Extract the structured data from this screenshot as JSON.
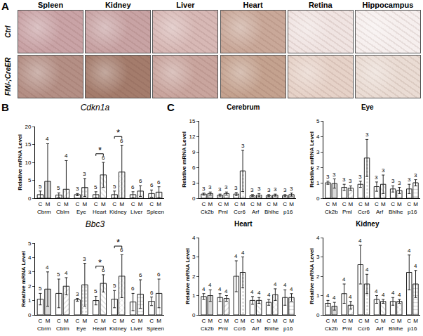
{
  "panel_labels": [
    "A",
    "B",
    "C"
  ],
  "histology": {
    "columns": [
      "Spleen",
      "Kidney",
      "Liver",
      "Heart",
      "Retina",
      "Hippocampus"
    ],
    "rows": [
      "Ctrl",
      "FM/-;CreER"
    ]
  },
  "chart_data": [
    {
      "type": "bar",
      "title": "Cdkn1a",
      "y_label": "Relative mRNA Level",
      "categories": [
        "C",
        "M",
        "C",
        "M",
        "C",
        "M",
        "C",
        "M",
        "C",
        "M",
        "C",
        "M",
        "C",
        "M"
      ],
      "groups": [
        "Cbrm",
        "Cblm",
        "Eye",
        "Heart",
        "Kidney",
        "Liver",
        "Spleen"
      ],
      "values": [
        1.0,
        4.7,
        0.9,
        2.5,
        1.0,
        3.0,
        1.0,
        6.5,
        1.0,
        7.3,
        1.0,
        2.0,
        1.3,
        1.7
      ],
      "errors": [
        1.0,
        10.5,
        0.6,
        8.0,
        0.3,
        2.5,
        0.8,
        3.5,
        1.0,
        7.5,
        0.8,
        1.5,
        1.0,
        1.5
      ],
      "n": [
        5,
        4,
        5,
        4,
        3,
        3,
        5,
        6,
        5,
        6,
        6,
        6,
        6,
        6
      ],
      "significance": [
        {
          "text": "*",
          "between": [
            6,
            7
          ]
        },
        {
          "text": "*",
          "between": [
            8,
            9
          ]
        }
      ],
      "ylim": [
        0,
        20
      ],
      "yticks": [
        0,
        5,
        10,
        15,
        20
      ],
      "grid": false,
      "color": "#222222"
    },
    {
      "type": "bar",
      "title": "Bbc3",
      "y_label": "Relative mRNA Level",
      "categories": [
        "C",
        "M",
        "C",
        "M",
        "C",
        "M",
        "C",
        "M",
        "C",
        "M",
        "C",
        "M",
        "C",
        "M"
      ],
      "groups": [
        "Cbrm",
        "Cblm",
        "Eye",
        "Heart",
        "Kidney",
        "Liver",
        "Spleen"
      ],
      "values": [
        1.1,
        1.8,
        1.5,
        2.0,
        1.05,
        2.1,
        1.0,
        2.2,
        1.1,
        2.7,
        0.9,
        1.45,
        0.95,
        1.5
      ],
      "errors": [
        0.4,
        1.2,
        1.0,
        0.6,
        0.1,
        1.5,
        0.3,
        0.6,
        0.6,
        1.5,
        0.6,
        1.0,
        0.3,
        1.0
      ],
      "n": [
        5,
        4,
        5,
        4,
        3,
        3,
        5,
        6,
        5,
        6,
        6,
        6,
        6,
        6
      ],
      "significance": [
        {
          "text": "*",
          "between": [
            6,
            7
          ]
        },
        {
          "text": "*",
          "between": [
            8,
            9
          ]
        }
      ],
      "ylim": [
        0,
        5
      ],
      "yticks": [
        0,
        1,
        2,
        3,
        4,
        5
      ],
      "grid": false,
      "color": "#222222"
    },
    {
      "type": "bar",
      "title": "Cerebrum",
      "y_label": "Relative mRNA Level",
      "categories": [
        "C",
        "M",
        "C",
        "M",
        "C",
        "M",
        "C",
        "M",
        "C",
        "M",
        "C",
        "M"
      ],
      "groups": [
        "Ck2b",
        "Pml",
        "Ccr6",
        "Arf",
        "Bhlhe",
        "p16"
      ],
      "values": [
        0.8,
        0.9,
        0.6,
        0.9,
        0.8,
        5.3,
        0.5,
        0.6,
        0.5,
        0.6,
        0.5,
        0.7
      ],
      "errors": [
        0.2,
        0.3,
        0.2,
        0.3,
        0.3,
        4.0,
        0.2,
        0.3,
        0.2,
        0.2,
        0.2,
        0.3
      ],
      "n": [
        3,
        3,
        3,
        3,
        3,
        3,
        3,
        3,
        3,
        3,
        3,
        3
      ],
      "ylim": [
        0,
        15
      ],
      "yticks": [
        0,
        3,
        6,
        9,
        12,
        15
      ],
      "grid": false,
      "color": "#222222"
    },
    {
      "type": "bar",
      "title": "Eye",
      "y_label": "Relative mRNA Level",
      "categories": [
        "C",
        "M",
        "C",
        "M",
        "C",
        "M",
        "C",
        "M",
        "C",
        "M",
        "C",
        "M"
      ],
      "groups": [
        "Ck2b",
        "Pml",
        "Ccr6",
        "Arf",
        "Bhlhe",
        "p16"
      ],
      "values": [
        1.0,
        0.95,
        0.7,
        0.65,
        0.9,
        2.6,
        0.75,
        0.9,
        0.6,
        0.5,
        0.6,
        1.0
      ],
      "errors": [
        0.1,
        0.3,
        0.2,
        0.15,
        0.2,
        1.2,
        0.3,
        0.6,
        0.2,
        0.2,
        0.3,
        0.2
      ],
      "n": [
        3,
        3,
        3,
        3,
        3,
        3,
        3,
        3,
        3,
        3,
        3,
        3
      ],
      "ylim": [
        0,
        5
      ],
      "yticks": [
        0,
        1,
        2,
        3,
        4,
        5
      ],
      "grid": false,
      "color": "#222222"
    },
    {
      "type": "bar",
      "title": "Heart",
      "y_label": "Relative mRNA Level",
      "categories": [
        "C",
        "M",
        "C",
        "M",
        "C",
        "M",
        "C",
        "M",
        "C",
        "M",
        "C",
        "M"
      ],
      "groups": [
        "Ck2b",
        "Pml",
        "Ccr6",
        "Arf",
        "Bhlhe",
        "p16"
      ],
      "values": [
        0.95,
        1.0,
        0.9,
        0.85,
        2.0,
        2.2,
        0.75,
        0.75,
        0.65,
        1.05,
        0.9,
        0.9
      ],
      "errors": [
        0.15,
        0.3,
        0.2,
        0.15,
        0.8,
        0.8,
        0.2,
        0.15,
        0.15,
        0.3,
        0.4,
        0.2
      ],
      "n": [
        4,
        4,
        4,
        4,
        4,
        4,
        4,
        4,
        4,
        4,
        4,
        4
      ],
      "ylim": [
        0,
        4
      ],
      "yticks": [
        0,
        1,
        2,
        3,
        4
      ],
      "grid": false,
      "color": "#222222"
    },
    {
      "type": "bar",
      "title": "Kidney",
      "y_label": "Relative mRNA Level",
      "categories": [
        "C",
        "M",
        "C",
        "M",
        "C",
        "M",
        "C",
        "M",
        "C",
        "M",
        "C",
        "M"
      ],
      "groups": [
        "Ck2b",
        "Pml",
        "Ccr6",
        "Arf",
        "Bhlhe",
        "p16"
      ],
      "values": [
        0.6,
        0.45,
        1.1,
        0.5,
        2.6,
        1.6,
        0.8,
        0.7,
        0.7,
        0.7,
        2.2,
        1.6
      ],
      "errors": [
        0.15,
        0.2,
        0.5,
        0.2,
        1.0,
        0.5,
        0.2,
        0.1,
        0.2,
        0.1,
        0.9,
        0.7
      ],
      "n": [
        4,
        4,
        4,
        4,
        4,
        4,
        4,
        4,
        4,
        4,
        4,
        4
      ],
      "ylim": [
        0,
        4
      ],
      "yticks": [
        0,
        1,
        2,
        3,
        4
      ],
      "grid": false,
      "color": "#222222"
    }
  ]
}
